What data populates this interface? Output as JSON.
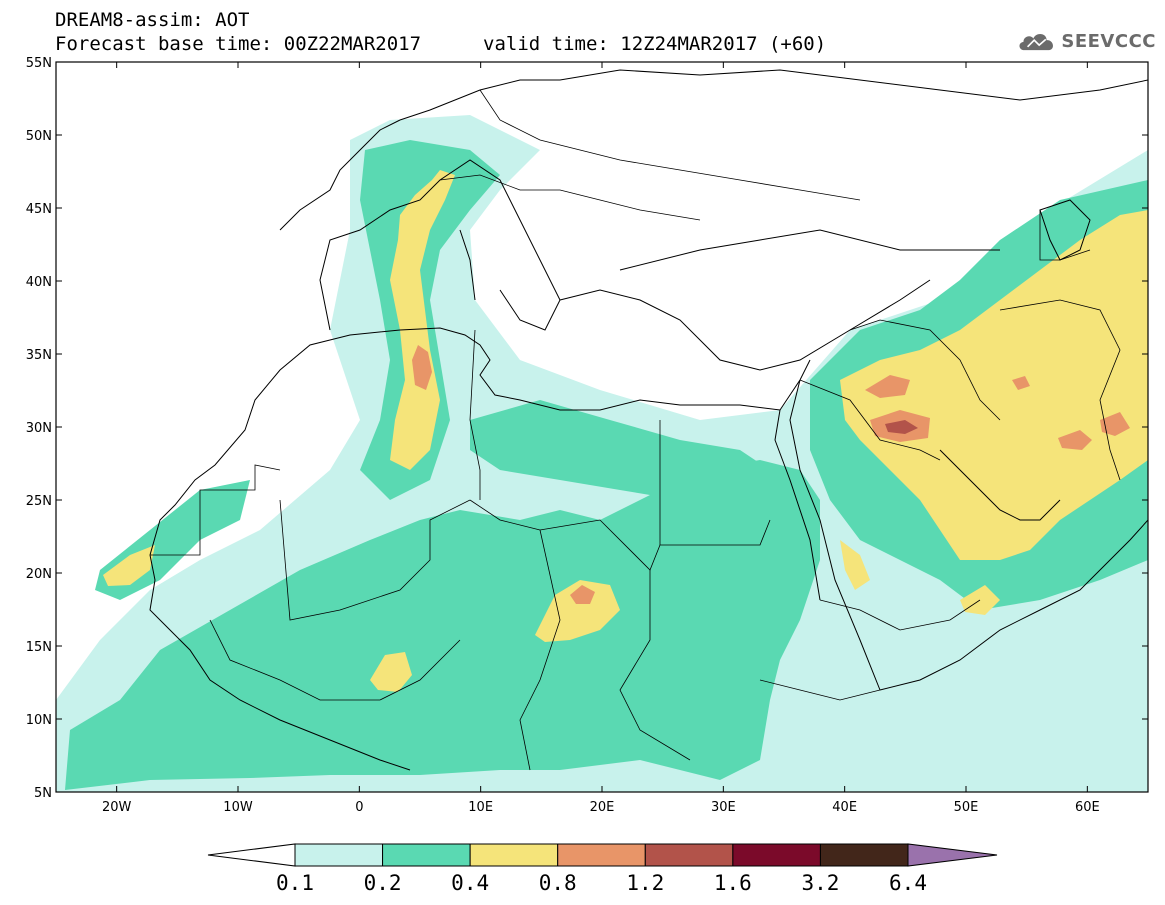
{
  "header": {
    "title": "DREAM8-assim: AOT",
    "base_time": "Forecast base time: 00Z22MAR2017",
    "valid_time": "valid time: 12Z24MAR2017 (+60)"
  },
  "logo": {
    "text": "SEEVCCC",
    "icon": "cloud-icon",
    "color": "#6b6b6b"
  },
  "map": {
    "lon_range": [
      -25,
      65
    ],
    "lat_range": [
      5,
      55
    ],
    "lon_ticks": [
      {
        "value": -20,
        "label": "20W"
      },
      {
        "value": -10,
        "label": "10W"
      },
      {
        "value": 0,
        "label": "0"
      },
      {
        "value": 10,
        "label": "10E"
      },
      {
        "value": 20,
        "label": "20E"
      },
      {
        "value": 30,
        "label": "30E"
      },
      {
        "value": 40,
        "label": "40E"
      },
      {
        "value": 50,
        "label": "50E"
      },
      {
        "value": 60,
        "label": "60E"
      }
    ],
    "lat_ticks": [
      {
        "value": 5,
        "label": "5N"
      },
      {
        "value": 10,
        "label": "10N"
      },
      {
        "value": 15,
        "label": "15N"
      },
      {
        "value": 20,
        "label": "20N"
      },
      {
        "value": 25,
        "label": "25N"
      },
      {
        "value": 30,
        "label": "30N"
      },
      {
        "value": 35,
        "label": "35N"
      },
      {
        "value": 40,
        "label": "40N"
      },
      {
        "value": 45,
        "label": "45N"
      },
      {
        "value": 50,
        "label": "50N"
      },
      {
        "value": 55,
        "label": "55N"
      }
    ]
  },
  "colorbar": {
    "levels": [
      "0.1",
      "0.2",
      "0.4",
      "0.8",
      "1.2",
      "1.6",
      "3.2",
      "6.4"
    ],
    "under_color": "#ffffff",
    "colors": [
      "#c8f2ec",
      "#5ad9b2",
      "#f5e47a",
      "#e89568",
      "#b2534a",
      "#7b0a2a",
      "#42261a"
    ],
    "over_color": "#9a72ac"
  }
}
